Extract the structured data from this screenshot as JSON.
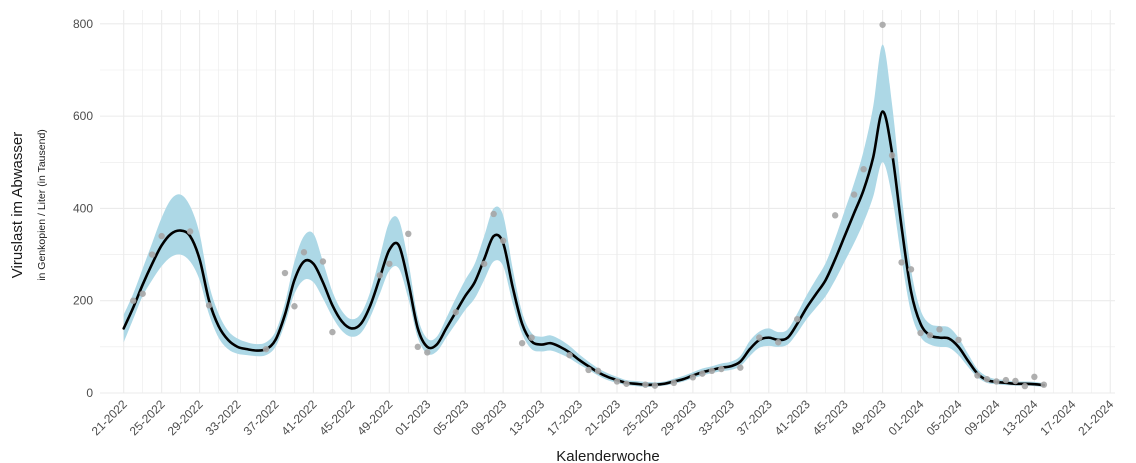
{
  "chart_data": {
    "type": "line",
    "xlabel": "Kalenderwoche",
    "ylabel": "Viruslast im Abwasser",
    "ylabel_sub": "in Genkopien / Liter (in Tausend)",
    "ylim": [
      0,
      830
    ],
    "y_ticks": [
      0,
      200,
      400,
      600,
      800
    ],
    "grid": true,
    "x_ticks": [
      {
        "x": 0,
        "label": "21-2022"
      },
      {
        "x": 4,
        "label": "25-2022"
      },
      {
        "x": 8,
        "label": "29-2022"
      },
      {
        "x": 12,
        "label": "33-2022"
      },
      {
        "x": 16,
        "label": "37-2022"
      },
      {
        "x": 20,
        "label": "41-2022"
      },
      {
        "x": 24,
        "label": "45-2022"
      },
      {
        "x": 28,
        "label": "49-2022"
      },
      {
        "x": 32,
        "label": "01-2023"
      },
      {
        "x": 36,
        "label": "05-2023"
      },
      {
        "x": 40,
        "label": "09-2023"
      },
      {
        "x": 44,
        "label": "13-2023"
      },
      {
        "x": 48,
        "label": "17-2023"
      },
      {
        "x": 52,
        "label": "21-2023"
      },
      {
        "x": 56,
        "label": "25-2023"
      },
      {
        "x": 60,
        "label": "29-2023"
      },
      {
        "x": 64,
        "label": "33-2023"
      },
      {
        "x": 68,
        "label": "37-2023"
      },
      {
        "x": 72,
        "label": "41-2023"
      },
      {
        "x": 76,
        "label": "45-2023"
      },
      {
        "x": 80,
        "label": "49-2023"
      },
      {
        "x": 84,
        "label": "01-2024"
      },
      {
        "x": 88,
        "label": "05-2024"
      },
      {
        "x": 92,
        "label": "09-2024"
      },
      {
        "x": 96,
        "label": "13-2024"
      },
      {
        "x": 100,
        "label": "17-2024"
      },
      {
        "x": 104,
        "label": "21-2024"
      }
    ],
    "xlim": [
      -2.5,
      104.5
    ],
    "colors": {
      "band": "#add8e6",
      "line": "#000000",
      "points": "#a6a6a6",
      "grid": "#ebebeb"
    },
    "smooth": {
      "x": [
        0,
        1,
        2,
        3,
        4,
        5,
        6,
        7,
        8,
        9,
        10,
        11,
        12,
        13,
        14,
        15,
        16,
        17,
        18,
        19,
        20,
        21,
        22,
        23,
        24,
        25,
        26,
        27,
        28,
        29,
        30,
        31,
        32,
        33,
        34,
        35,
        36,
        37,
        38,
        39,
        40,
        41,
        42,
        43,
        44,
        45,
        46,
        47,
        48,
        49,
        50,
        51,
        52,
        53,
        54,
        55,
        56,
        57,
        58,
        59,
        60,
        61,
        62,
        63,
        64,
        65,
        66,
        67,
        68,
        69,
        70,
        71,
        72,
        73,
        74,
        75,
        76,
        77,
        78,
        79,
        80,
        81,
        82,
        83,
        84,
        85,
        86,
        87,
        88,
        89,
        90,
        91,
        92,
        93,
        94,
        95,
        96,
        97
      ],
      "y": [
        140,
        185,
        235,
        280,
        320,
        345,
        352,
        340,
        290,
        200,
        145,
        115,
        100,
        95,
        92,
        95,
        115,
        170,
        245,
        285,
        280,
        240,
        190,
        155,
        140,
        150,
        190,
        250,
        310,
        320,
        240,
        140,
        100,
        105,
        140,
        175,
        210,
        240,
        290,
        340,
        325,
        230,
        150,
        112,
        105,
        108,
        100,
        88,
        72,
        58,
        45,
        35,
        28,
        22,
        20,
        18,
        18,
        20,
        25,
        30,
        38,
        45,
        50,
        55,
        58,
        68,
        95,
        115,
        120,
        115,
        120,
        150,
        185,
        215,
        245,
        290,
        340,
        390,
        440,
        510,
        610,
        520,
        360,
        220,
        150,
        125,
        120,
        118,
        100,
        70,
        42,
        28,
        24,
        22,
        20,
        20,
        19,
        17
      ],
      "lower": [
        110,
        160,
        210,
        245,
        275,
        295,
        300,
        285,
        245,
        170,
        120,
        95,
        85,
        82,
        80,
        82,
        100,
        150,
        215,
        245,
        240,
        205,
        165,
        135,
        122,
        130,
        165,
        215,
        265,
        270,
        205,
        120,
        85,
        90,
        120,
        150,
        180,
        205,
        245,
        285,
        275,
        195,
        128,
        95,
        90,
        92,
        85,
        75,
        62,
        50,
        38,
        28,
        22,
        17,
        15,
        13,
        14,
        16,
        20,
        25,
        32,
        38,
        43,
        47,
        50,
        58,
        80,
        98,
        102,
        100,
        105,
        130,
        160,
        185,
        210,
        245,
        285,
        325,
        370,
        425,
        500,
        425,
        290,
        175,
        122,
        105,
        100,
        98,
        82,
        57,
        34,
        22,
        19,
        17,
        16,
        16,
        15,
        13
      ],
      "upper": [
        170,
        215,
        270,
        325,
        380,
        420,
        430,
        405,
        345,
        235,
        172,
        135,
        118,
        110,
        106,
        110,
        133,
        195,
        285,
        340,
        345,
        285,
        220,
        178,
        160,
        172,
        220,
        295,
        370,
        375,
        285,
        165,
        118,
        122,
        162,
        205,
        245,
        280,
        340,
        400,
        385,
        270,
        175,
        130,
        122,
        125,
        116,
        102,
        84,
        68,
        54,
        43,
        35,
        28,
        26,
        24,
        23,
        25,
        31,
        37,
        45,
        53,
        58,
        64,
        68,
        80,
        113,
        133,
        140,
        132,
        138,
        172,
        212,
        247,
        282,
        335,
        395,
        455,
        525,
        620,
        755,
        625,
        430,
        268,
        180,
        150,
        145,
        142,
        120,
        85,
        52,
        36,
        30,
        28,
        25,
        25,
        24,
        21
      ]
    },
    "points": [
      {
        "x": 1,
        "y": 200
      },
      {
        "x": 2,
        "y": 215
      },
      {
        "x": 3,
        "y": 300
      },
      {
        "x": 4,
        "y": 340
      },
      {
        "x": 7,
        "y": 350
      },
      {
        "x": 9,
        "y": 190
      },
      {
        "x": 15,
        "y": 95
      },
      {
        "x": 17,
        "y": 260
      },
      {
        "x": 18,
        "y": 188
      },
      {
        "x": 19,
        "y": 305
      },
      {
        "x": 21,
        "y": 285
      },
      {
        "x": 22,
        "y": 132
      },
      {
        "x": 27,
        "y": 255
      },
      {
        "x": 28,
        "y": 280
      },
      {
        "x": 30,
        "y": 345
      },
      {
        "x": 31,
        "y": 100
      },
      {
        "x": 32,
        "y": 88
      },
      {
        "x": 35,
        "y": 175
      },
      {
        "x": 38,
        "y": 280
      },
      {
        "x": 39,
        "y": 388
      },
      {
        "x": 40,
        "y": 330
      },
      {
        "x": 42,
        "y": 108
      },
      {
        "x": 43,
        "y": 120
      },
      {
        "x": 47,
        "y": 82
      },
      {
        "x": 49,
        "y": 50
      },
      {
        "x": 50,
        "y": 48
      },
      {
        "x": 52,
        "y": 25
      },
      {
        "x": 53,
        "y": 20
      },
      {
        "x": 55,
        "y": 18
      },
      {
        "x": 56,
        "y": 16
      },
      {
        "x": 58,
        "y": 22
      },
      {
        "x": 60,
        "y": 34
      },
      {
        "x": 61,
        "y": 42
      },
      {
        "x": 62,
        "y": 48
      },
      {
        "x": 63,
        "y": 52
      },
      {
        "x": 65,
        "y": 55
      },
      {
        "x": 67,
        "y": 120
      },
      {
        "x": 69,
        "y": 110
      },
      {
        "x": 71,
        "y": 160
      },
      {
        "x": 75,
        "y": 385
      },
      {
        "x": 77,
        "y": 430
      },
      {
        "x": 78,
        "y": 485
      },
      {
        "x": 80,
        "y": 798
      },
      {
        "x": 81,
        "y": 515
      },
      {
        "x": 82,
        "y": 283
      },
      {
        "x": 83,
        "y": 268
      },
      {
        "x": 84,
        "y": 130
      },
      {
        "x": 85,
        "y": 125
      },
      {
        "x": 86,
        "y": 138
      },
      {
        "x": 88,
        "y": 115
      },
      {
        "x": 90,
        "y": 38
      },
      {
        "x": 91,
        "y": 30
      },
      {
        "x": 92,
        "y": 25
      },
      {
        "x": 93,
        "y": 28
      },
      {
        "x": 94,
        "y": 26
      },
      {
        "x": 95,
        "y": 15
      },
      {
        "x": 96,
        "y": 35
      },
      {
        "x": 97,
        "y": 18
      }
    ]
  }
}
